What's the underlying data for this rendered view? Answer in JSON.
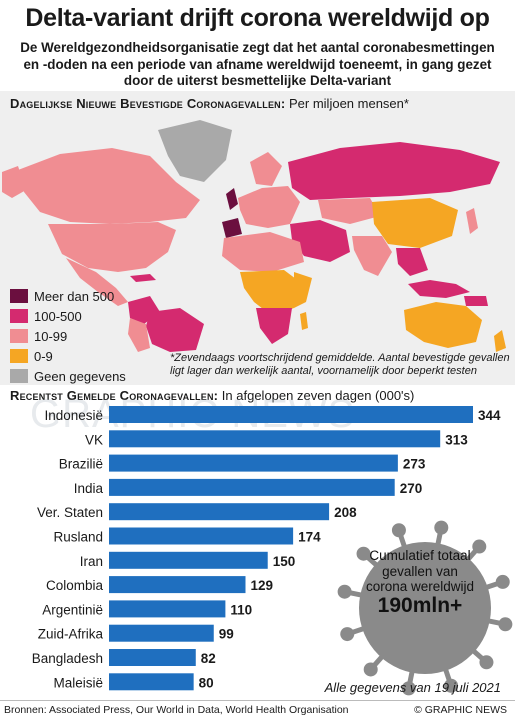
{
  "header": {
    "title": "Delta-variant drijft corona wereldwijd op",
    "subtitle": "De Wereldgezondheidsorganisatie zegt dat het aantal coronabesmettingen en -doden na een periode van afname wereldwijd toeneemt, in gang gezet door de uiterst besmettelijke Delta-variant"
  },
  "map_section": {
    "heading_label": "Dagelijkse Nieuwe Bevestigde Coronagevallen:",
    "heading_suffix": " Per miljoen mensen*",
    "legend": [
      {
        "label": "Meer dan 500",
        "color": "#6b0f3f"
      },
      {
        "label": "100-500",
        "color": "#d42a6f"
      },
      {
        "label": "10-99",
        "color": "#f08d92"
      },
      {
        "label": "0-9",
        "color": "#f5a623"
      },
      {
        "label": "Geen gegevens",
        "color": "#a9a9a9"
      }
    ],
    "footnote": "*Zevendaags voortschrijdend gemiddelde. Aantal bevestigde gevallen ligt lager dan werkelijk aantal, voornamelijk door beperkt testen"
  },
  "bar_section": {
    "heading_label": "Recentst Gemelde Coronagevallen:",
    "heading_suffix": " In afgelopen zeven dagen (000's)"
  },
  "watermark": "GRAPHIC NEWS",
  "chart_data": {
    "type": "bar",
    "orientation": "horizontal",
    "categories": [
      "Indonesië",
      "VK",
      "Brazilië",
      "India",
      "Ver. Staten",
      "Rusland",
      "Iran",
      "Colombia",
      "Argentinië",
      "Zuid-Afrika",
      "Bangladesh",
      "Maleisië"
    ],
    "values": [
      344,
      313,
      273,
      270,
      208,
      174,
      150,
      129,
      110,
      99,
      82,
      80
    ],
    "bar_color": "#1f6fbf",
    "xlim": [
      0,
      344
    ]
  },
  "badge": {
    "text": "Cumulatief totaal gevallen van corona wereldwijd",
    "value": "190mln+"
  },
  "date_note": "Alle gegevens van 19 juli 2021",
  "footer": {
    "sources": "Bronnen: Associated Press, Our World in Data, World Health Organisation",
    "credit": "© GRAPHIC NEWS"
  }
}
